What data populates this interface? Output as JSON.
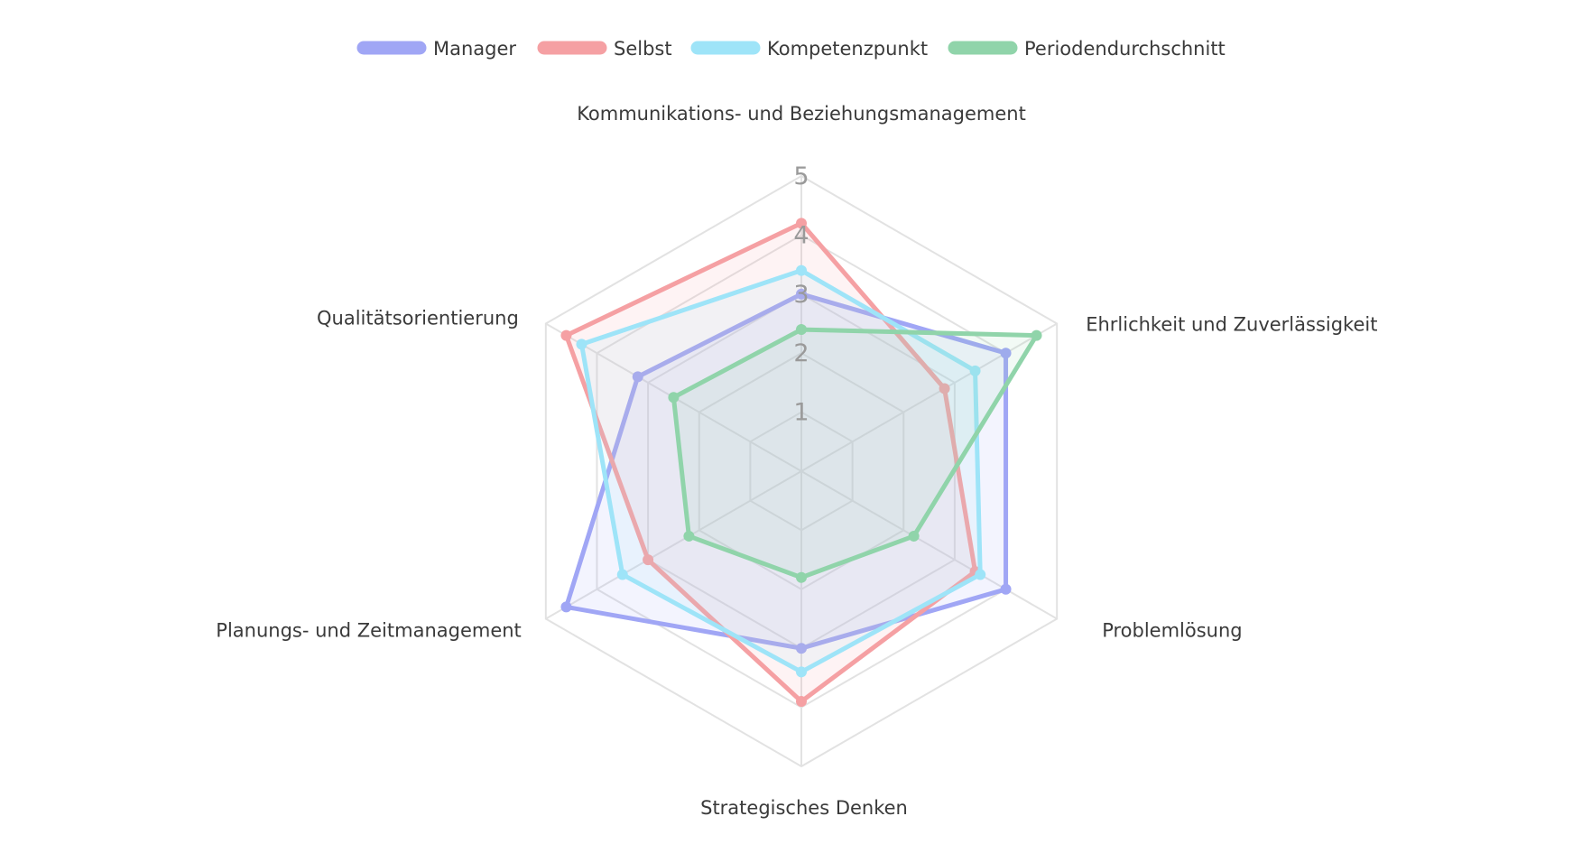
{
  "chart_data": {
    "type": "radar",
    "axes": [
      "Kommunikations- und Beziehungsmanagement",
      "Ehrlichkeit und Zuverlässigkeit",
      "Problemlösung",
      "Strategisches Denken",
      "Planungs- und Zeitmanagement",
      "Qualitätsorientierung"
    ],
    "rlim": [
      0,
      5
    ],
    "ticks": [
      1,
      2,
      3,
      4,
      5
    ],
    "grid": true,
    "legend_position": "top",
    "series": [
      {
        "name": "Manager",
        "color": "#a0a6f5",
        "values": [
          3.0,
          4.0,
          4.0,
          3.0,
          4.6,
          3.2
        ]
      },
      {
        "name": "Selbst",
        "color": "#f5a0a3",
        "values": [
          4.2,
          2.8,
          3.4,
          3.9,
          3.0,
          4.6
        ]
      },
      {
        "name": "Kompetenzpunkt",
        "color": "#9ee4f8",
        "values": [
          3.4,
          3.4,
          3.5,
          3.4,
          3.5,
          4.3
        ]
      },
      {
        "name": "Periodendurchschnitt",
        "color": "#90d4aa",
        "values": [
          2.4,
          4.6,
          2.2,
          1.8,
          2.2,
          2.5
        ]
      }
    ]
  }
}
